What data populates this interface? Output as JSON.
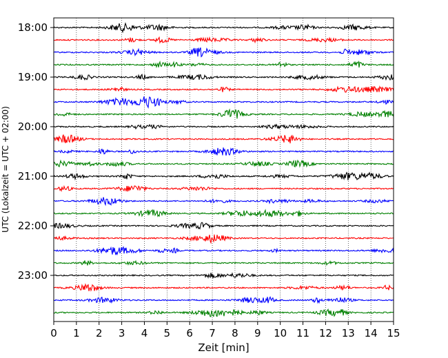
{
  "chart_data": {
    "type": "line",
    "xlabel": "Zeit  [min]",
    "ylabel": "UTC (Lokalzeit = UTC + 02:00)",
    "xlim": [
      0,
      15
    ],
    "x_ticks": [
      "0",
      "1",
      "2",
      "3",
      "4",
      "5",
      "6",
      "7",
      "8",
      "9",
      "10",
      "11",
      "12",
      "13",
      "14",
      "15"
    ],
    "y_ticks": [
      "18:00",
      "19:00",
      "20:00",
      "21:00",
      "22:00",
      "23:00"
    ],
    "vertical_grid": true,
    "grid_style": "dotted",
    "line_colors": [
      "#000000",
      "#ff0000",
      "#0000ff",
      "#008000"
    ],
    "trace_count": 24,
    "trace_interval_minutes": 15,
    "first_trace": "18:00",
    "last_trace": "23:45"
  }
}
